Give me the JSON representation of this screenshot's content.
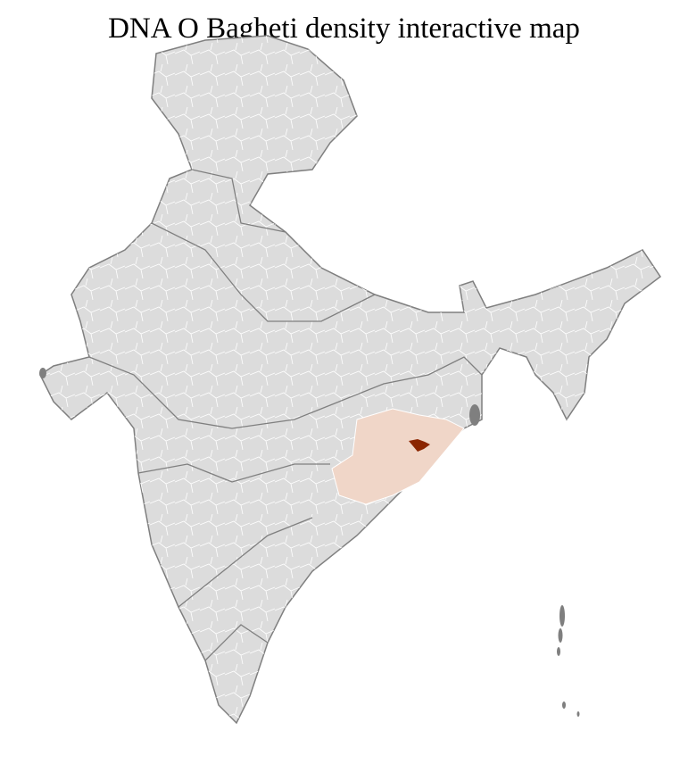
{
  "title": "DNA O Bagheti density interactive map",
  "colors": {
    "base_fill": "#dcdcdc",
    "border": "#7f7f7f",
    "district_lines": "#ffffff",
    "low_density": "#f0d6c8",
    "high_density": "#8b2500"
  }
}
